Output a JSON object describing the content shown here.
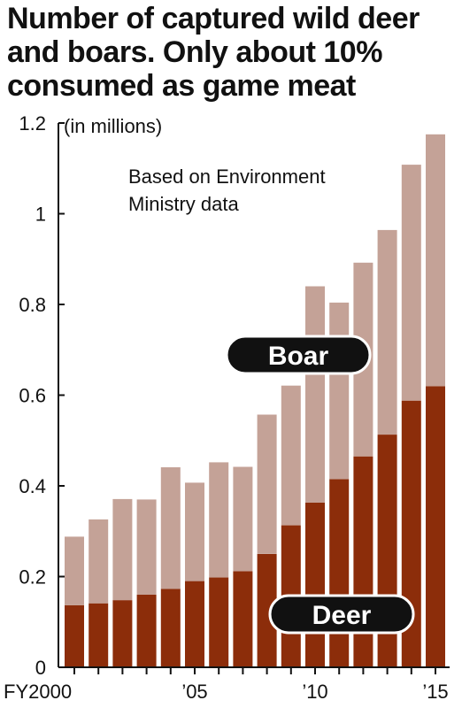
{
  "title_lines": [
    "Number of captured wild deer",
    "and boars. Only about 10%",
    "consumed as game meat"
  ],
  "chart_data": {
    "type": "bar",
    "stacked": true,
    "title": "Number of captured wild deer and boars. Only about 10% consumed as game meat",
    "unit_label": "(in millions)",
    "note": [
      "Based on Environment",
      "Ministry data"
    ],
    "categories": [
      "2000",
      "2001",
      "2002",
      "2003",
      "2004",
      "2005",
      "2006",
      "2007",
      "2008",
      "2009",
      "2010",
      "2011",
      "2012",
      "2013",
      "2014",
      "2015"
    ],
    "x_tick_labels": [
      {
        "index": 0,
        "text": "FY2000"
      },
      {
        "index": 5,
        "text": "’05"
      },
      {
        "index": 10,
        "text": "’10"
      },
      {
        "index": 15,
        "text": "’15"
      }
    ],
    "ylim": [
      0,
      1.2
    ],
    "y_ticks": [
      0,
      0.2,
      0.4,
      0.6,
      0.8,
      1,
      1.2
    ],
    "y_tick_labels": [
      "0",
      "0.2",
      "0.4",
      "0.6",
      "0.8",
      "1",
      "1.2"
    ],
    "series": [
      {
        "name": "Deer",
        "color": "#8c2d0a",
        "values": [
          0.137,
          0.141,
          0.148,
          0.16,
          0.173,
          0.19,
          0.198,
          0.212,
          0.25,
          0.313,
          0.363,
          0.415,
          0.465,
          0.513,
          0.588,
          0.62
        ]
      },
      {
        "name": "Boar",
        "color": "#c4a297",
        "values": [
          0.151,
          0.185,
          0.223,
          0.21,
          0.268,
          0.217,
          0.254,
          0.23,
          0.307,
          0.308,
          0.477,
          0.389,
          0.427,
          0.451,
          0.52,
          0.555
        ]
      }
    ],
    "grid": false
  },
  "colors": {
    "pill_bg": "#111111",
    "pill_border": "#ffffff",
    "axis": "#111111"
  }
}
